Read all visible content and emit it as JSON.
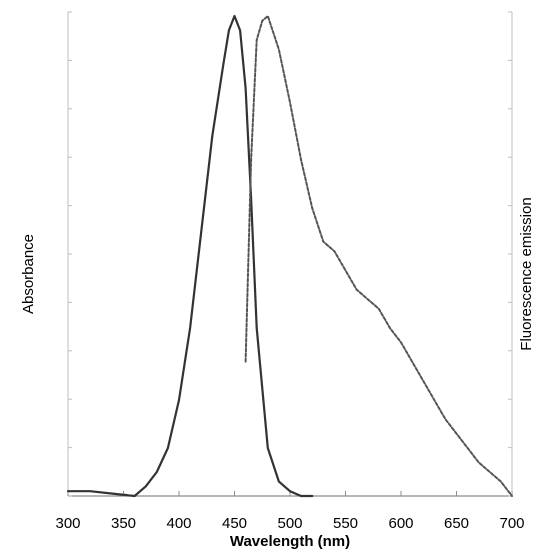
{
  "chart_data": {
    "type": "line",
    "xlabel": "Wavelength (nm)",
    "ylabel_left": "Absorbance",
    "ylabel_right": "Fluorescence emission",
    "xlim": [
      300,
      700
    ],
    "ylim": [
      0,
      1
    ],
    "xticks": [
      300,
      350,
      400,
      450,
      500,
      550,
      600,
      650,
      700
    ],
    "grid": false,
    "series": [
      {
        "style": "solid",
        "color": "#333333",
        "x": [
          300,
          320,
          340,
          360,
          370,
          380,
          390,
          400,
          410,
          420,
          430,
          440,
          445,
          450,
          455,
          460,
          465,
          470,
          480,
          490,
          500,
          510,
          520
        ],
        "y": [
          0.01,
          0.01,
          0.005,
          0.0,
          0.02,
          0.05,
          0.1,
          0.2,
          0.35,
          0.55,
          0.75,
          0.9,
          0.97,
          1.0,
          0.97,
          0.85,
          0.62,
          0.35,
          0.1,
          0.03,
          0.01,
          0.0,
          0.0
        ]
      },
      {
        "style": "dashed",
        "color": "#555555",
        "x": [
          460,
          465,
          470,
          475,
          480,
          490,
          500,
          510,
          520,
          530,
          540,
          550,
          560,
          570,
          580,
          590,
          600,
          610,
          620,
          630,
          640,
          650,
          660,
          670,
          680,
          690,
          700
        ],
        "y": [
          0.28,
          0.7,
          0.95,
          0.99,
          1.0,
          0.93,
          0.82,
          0.7,
          0.6,
          0.53,
          0.51,
          0.47,
          0.43,
          0.41,
          0.39,
          0.35,
          0.32,
          0.28,
          0.24,
          0.2,
          0.16,
          0.13,
          0.1,
          0.07,
          0.05,
          0.03,
          0.0
        ]
      }
    ]
  }
}
